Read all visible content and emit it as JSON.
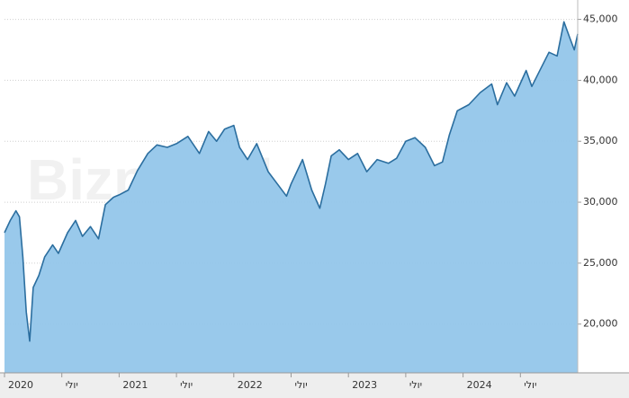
{
  "chart_data": {
    "type": "area",
    "watermark": "Bizportal",
    "x": [
      2020.0,
      2020.05,
      2020.1,
      2020.13,
      2020.16,
      2020.19,
      2020.22,
      2020.25,
      2020.3,
      2020.35,
      2020.42,
      2020.47,
      2020.55,
      2020.62,
      2020.68,
      2020.75,
      2020.82,
      2020.88,
      2020.95,
      2021.0,
      2021.08,
      2021.16,
      2021.25,
      2021.33,
      2021.42,
      2021.5,
      2021.6,
      2021.7,
      2021.78,
      2021.85,
      2021.92,
      2022.0,
      2022.05,
      2022.12,
      2022.2,
      2022.3,
      2022.38,
      2022.46,
      2022.5,
      2022.6,
      2022.68,
      2022.75,
      2022.8,
      2022.85,
      2022.92,
      2023.0,
      2023.08,
      2023.16,
      2023.25,
      2023.35,
      2023.42,
      2023.5,
      2023.58,
      2023.67,
      2023.75,
      2023.82,
      2023.88,
      2023.95,
      2024.05,
      2024.15,
      2024.25,
      2024.3,
      2024.38,
      2024.45,
      2024.55,
      2024.6,
      2024.68,
      2024.75,
      2024.82,
      2024.88,
      2024.93,
      2024.97,
      2025.0
    ],
    "values": [
      27500,
      28500,
      29300,
      28800,
      25500,
      21000,
      18600,
      23000,
      24000,
      25500,
      26500,
      25800,
      27500,
      28500,
      27200,
      28000,
      27000,
      29800,
      30400,
      30600,
      31000,
      32600,
      34000,
      34700,
      34500,
      34800,
      35400,
      34000,
      35800,
      35000,
      36000,
      36300,
      34500,
      33500,
      34800,
      32500,
      31500,
      30500,
      31500,
      33500,
      31000,
      29500,
      31500,
      33800,
      34300,
      33500,
      34000,
      32500,
      33500,
      33200,
      33600,
      35000,
      35300,
      34500,
      33000,
      33300,
      35500,
      37500,
      38000,
      39000,
      39700,
      38000,
      39800,
      38700,
      40800,
      39500,
      41000,
      42300,
      42000,
      44800,
      43500,
      42500,
      43800
    ],
    "line_color": "#2b6e9f",
    "fill_color": "#93c6ea",
    "xlim": [
      2020.0,
      2025.0
    ],
    "xticks": [
      {
        "value": 2020.0,
        "label": "2020"
      },
      {
        "value": 2020.5,
        "label": "יולי"
      },
      {
        "value": 2021.0,
        "label": "2021"
      },
      {
        "value": 2021.5,
        "label": "יולי"
      },
      {
        "value": 2022.0,
        "label": "2022"
      },
      {
        "value": 2022.5,
        "label": "יולי"
      },
      {
        "value": 2023.0,
        "label": "2023"
      },
      {
        "value": 2023.5,
        "label": "יולי"
      },
      {
        "value": 2024.0,
        "label": "2024"
      },
      {
        "value": 2024.5,
        "label": "יולי"
      }
    ],
    "ylim": [
      16000,
      46000
    ],
    "yticks": [
      {
        "value": 20000,
        "label": "20,000"
      },
      {
        "value": 25000,
        "label": "25,000"
      },
      {
        "value": 30000,
        "label": "30,000"
      },
      {
        "value": 35000,
        "label": "35,000"
      },
      {
        "value": 40000,
        "label": "40,000"
      },
      {
        "value": 45000,
        "label": "45,000"
      }
    ],
    "grid": true
  }
}
